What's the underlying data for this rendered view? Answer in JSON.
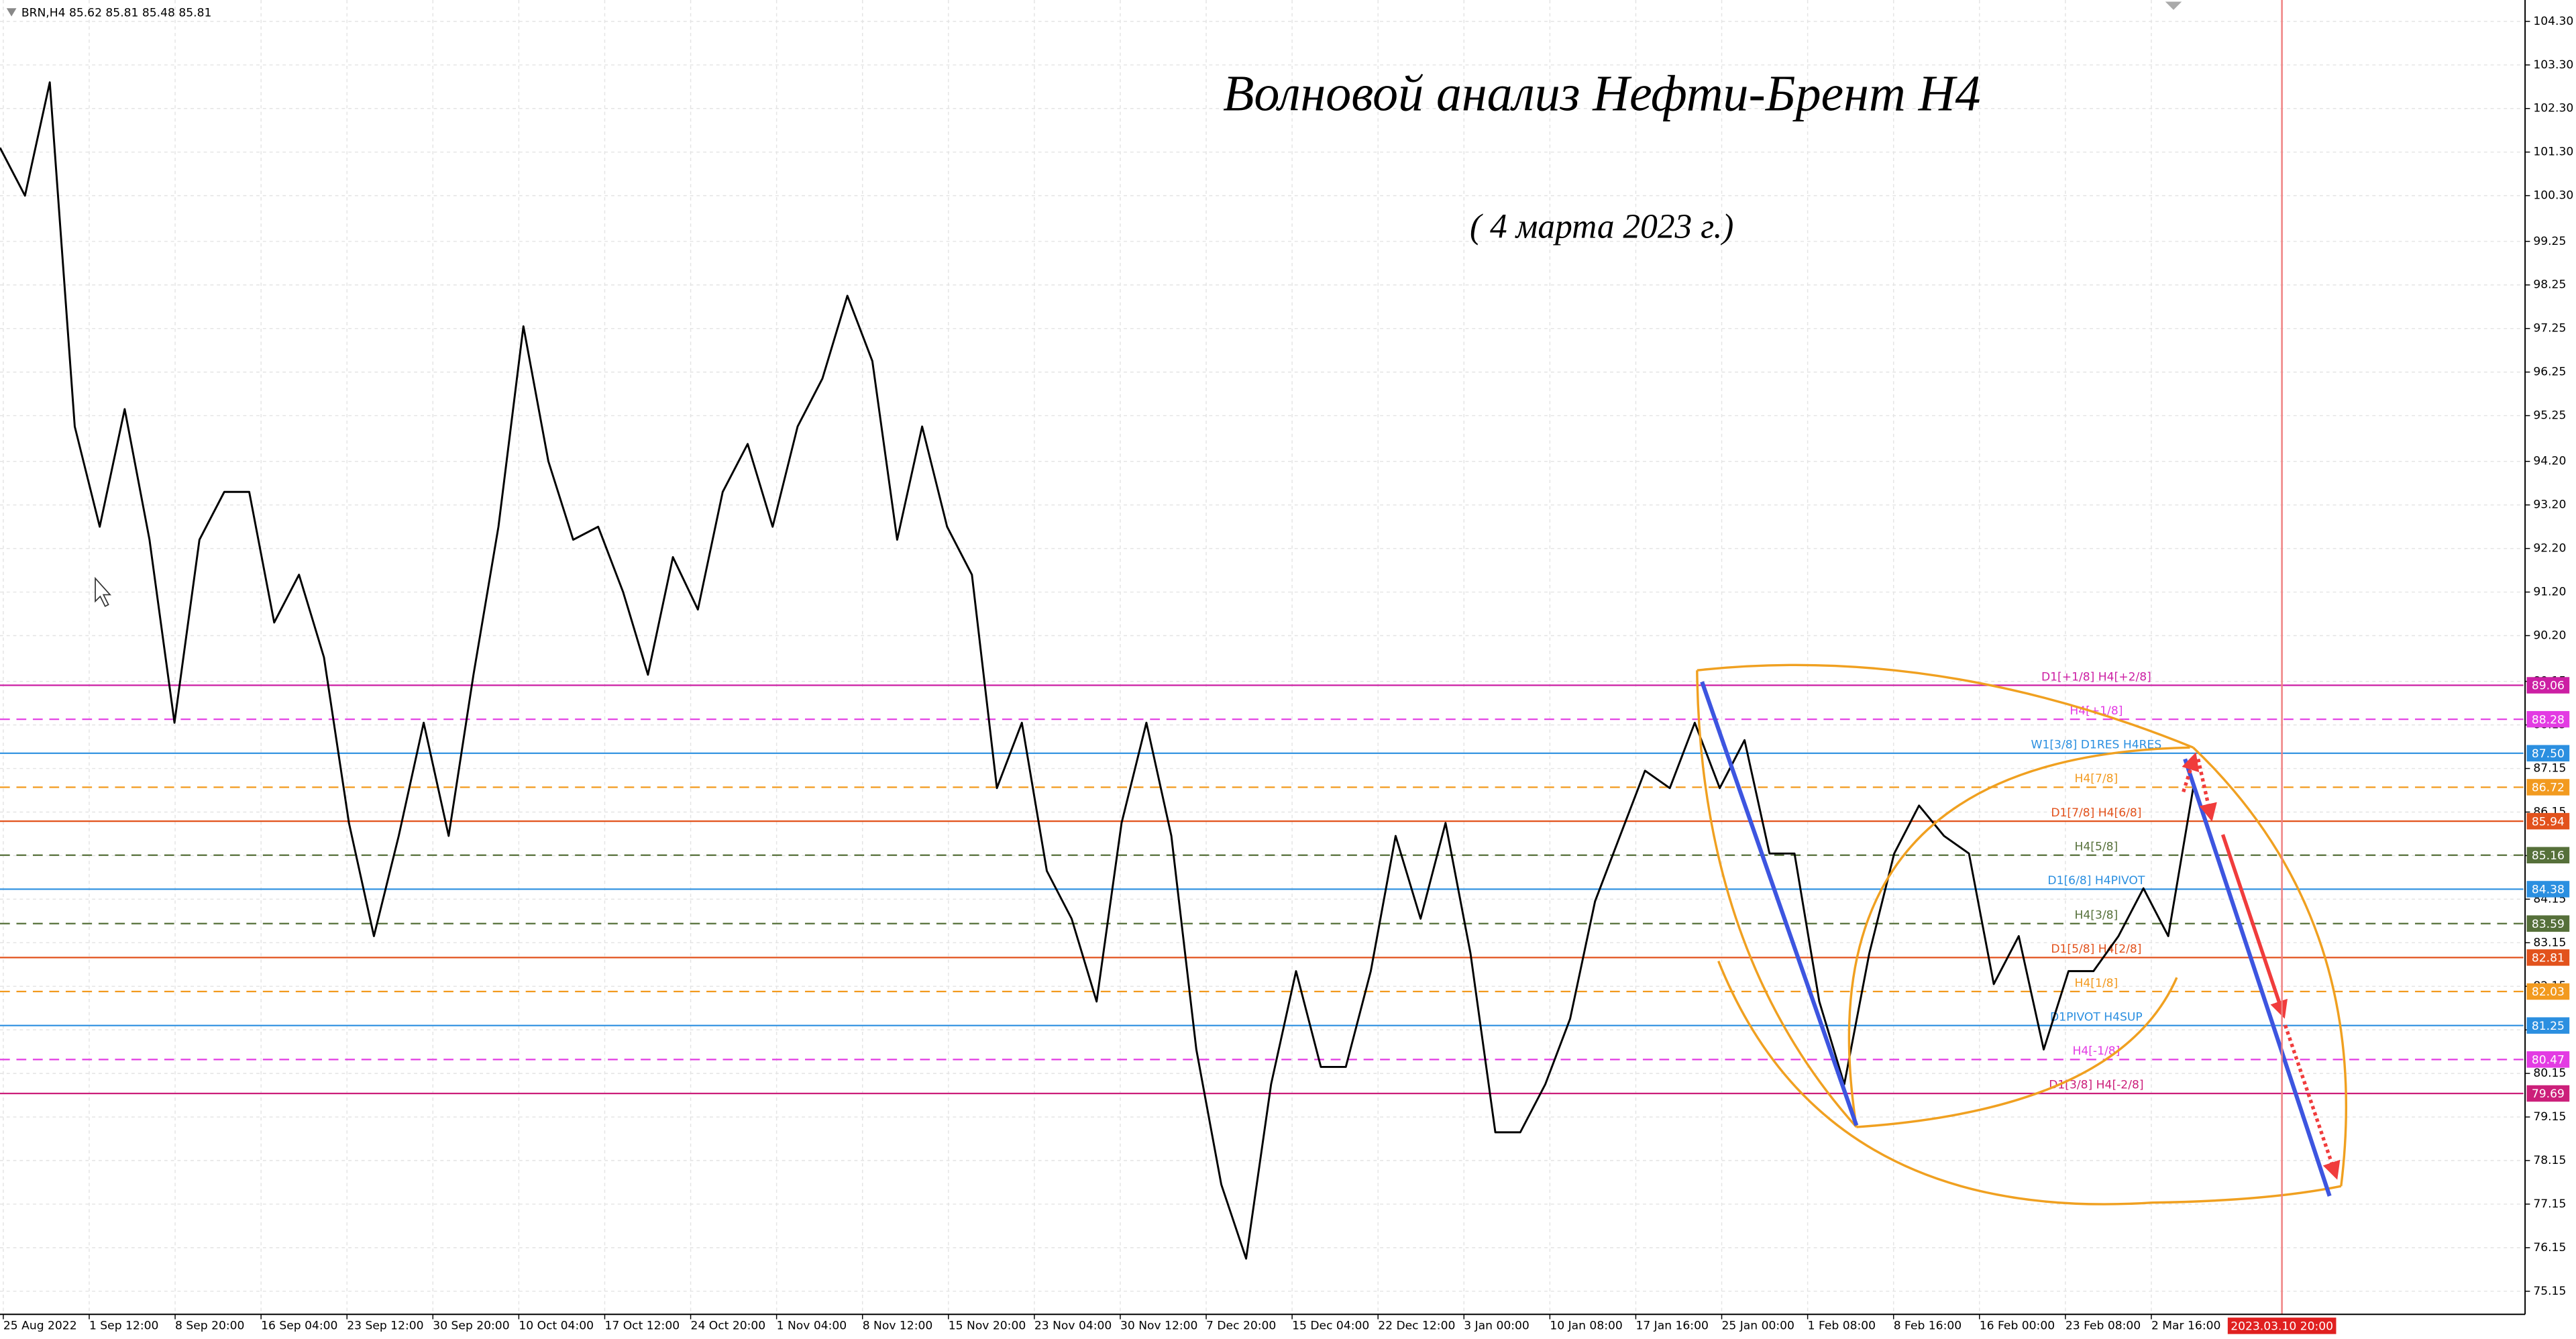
{
  "chart_data": {
    "type": "line",
    "header": "BRN,H4  85.62 85.81 85.48 85.81",
    "title": "Волновой анализ Нефти-Брент H4",
    "subtitle": "( 4 марта 2023 г.)",
    "x_labels": [
      "25 Aug 2022",
      "1 Sep 12:00",
      "8 Sep 20:00",
      "16 Sep 04:00",
      "23 Sep 12:00",
      "30 Sep 20:00",
      "10 Oct 04:00",
      "17 Oct 12:00",
      "24 Oct 20:00",
      "1 Nov 04:00",
      "8 Nov 12:00",
      "15 Nov 20:00",
      "23 Nov 04:00",
      "30 Nov 12:00",
      "7 Dec 20:00",
      "15 Dec 04:00",
      "22 Dec 12:00",
      "3 Jan 00:00",
      "10 Jan 08:00",
      "17 Jan 16:00",
      "25 Jan 00:00",
      "1 Feb 08:00",
      "8 Feb 16:00",
      "16 Feb 00:00",
      "23 Feb 08:00",
      "2 Mar 16:00"
    ],
    "marker_label": "2023.03.10 20:00",
    "color": "#000000",
    "values": [
      101.4,
      100.3,
      102.9,
      95.0,
      92.7,
      95.4,
      92.4,
      88.2,
      92.4,
      93.5,
      93.5,
      90.5,
      91.6,
      89.7,
      85.9,
      83.3,
      85.6,
      88.2,
      85.6,
      89.3,
      92.7,
      97.3,
      94.2,
      92.4,
      92.7,
      91.2,
      89.3,
      92.0,
      90.8,
      93.5,
      94.6,
      92.7,
      95.0,
      96.1,
      98.0,
      96.5,
      92.4,
      95.0,
      92.7,
      91.6,
      86.7,
      88.2,
      84.8,
      83.7,
      81.8,
      85.9,
      88.2,
      85.6,
      80.7,
      77.6,
      75.9,
      79.9,
      82.5,
      80.3,
      80.3,
      82.5,
      85.6,
      83.7,
      85.9,
      82.9,
      78.8,
      78.8,
      79.9,
      81.4,
      84.1,
      85.6,
      87.1,
      86.7,
      88.2,
      86.7,
      87.8,
      85.2,
      85.2,
      81.8,
      79.9,
      82.9,
      85.2,
      86.3,
      85.6,
      85.2,
      82.2,
      83.3,
      80.7,
      82.5,
      82.5,
      83.3,
      84.4,
      83.3,
      86.7
    ],
    "ylim": [
      74.62,
      104.79
    ],
    "yticks": [
      {
        "value": 104.3,
        "label": "104.30"
      },
      {
        "value": 103.3,
        "label": "103.30"
      },
      {
        "value": 102.3,
        "label": "102.30"
      },
      {
        "value": 101.3,
        "label": "101.30"
      },
      {
        "value": 100.3,
        "label": "100.30"
      },
      99.25,
      98.25,
      97.25,
      96.25,
      95.25,
      {
        "value": 94.2,
        "label": "94.20"
      },
      {
        "value": 93.2,
        "label": "93.20"
      },
      {
        "value": 92.2,
        "label": "92.20"
      },
      {
        "value": 91.2,
        "label": "91.20"
      },
      {
        "value": 90.2,
        "label": "90.20"
      },
      89.15,
      88.15,
      87.15,
      86.15,
      85.15,
      84.15,
      83.15,
      82.15,
      81.15,
      80.15,
      79.15,
      78.15,
      77.15,
      76.15,
      75.15
    ],
    "grid": true,
    "levels": [
      {
        "label": "D1[+1/8] H4[+2/8]",
        "price": 89.06,
        "color": "#cc1fa3",
        "dashed": false
      },
      {
        "label": "H4[+1/8]",
        "price": 88.28,
        "color": "#e33be3",
        "dashed": true
      },
      {
        "label": "W1[3/8] D1RES H4RES",
        "price": 87.5,
        "price_label": "87.50",
        "color": "#2b8fe0",
        "dashed": false
      },
      {
        "label": "H4[7/8]",
        "price": 86.72,
        "color": "#f29a1f",
        "dashed": true
      },
      {
        "label": "D1[7/8] H4[6/8]",
        "price": 85.94,
        "color": "#e2521c",
        "dashed": false
      },
      {
        "label": "H4[5/8]",
        "price": 85.16,
        "color": "#56703a",
        "dashed": true
      },
      {
        "label": "D1[6/8] H4PIVOT",
        "price": 84.38,
        "color": "#2b8fe0",
        "dashed": false
      },
      {
        "label": "H4[3/8]",
        "price": 83.59,
        "color": "#56703a",
        "dashed": true
      },
      {
        "label": "D1[5/8] H4[2/8]",
        "price": 82.81,
        "color": "#e2521c",
        "dashed": false
      },
      {
        "label": "H4[1/8]",
        "price": 82.03,
        "color": "#f29a1f",
        "dashed": true
      },
      {
        "label": "D1PIVOT H4SUP",
        "price": 81.25,
        "color": "#2b8fe0",
        "dashed": false
      },
      {
        "label": "H4[-1/8]",
        "price": 80.47,
        "color": "#e33be3",
        "dashed": true
      },
      {
        "label": "D1[3/8] H4[-2/8]",
        "price": 79.69,
        "color": "#cc1f7a",
        "dashed": false
      }
    ]
  }
}
